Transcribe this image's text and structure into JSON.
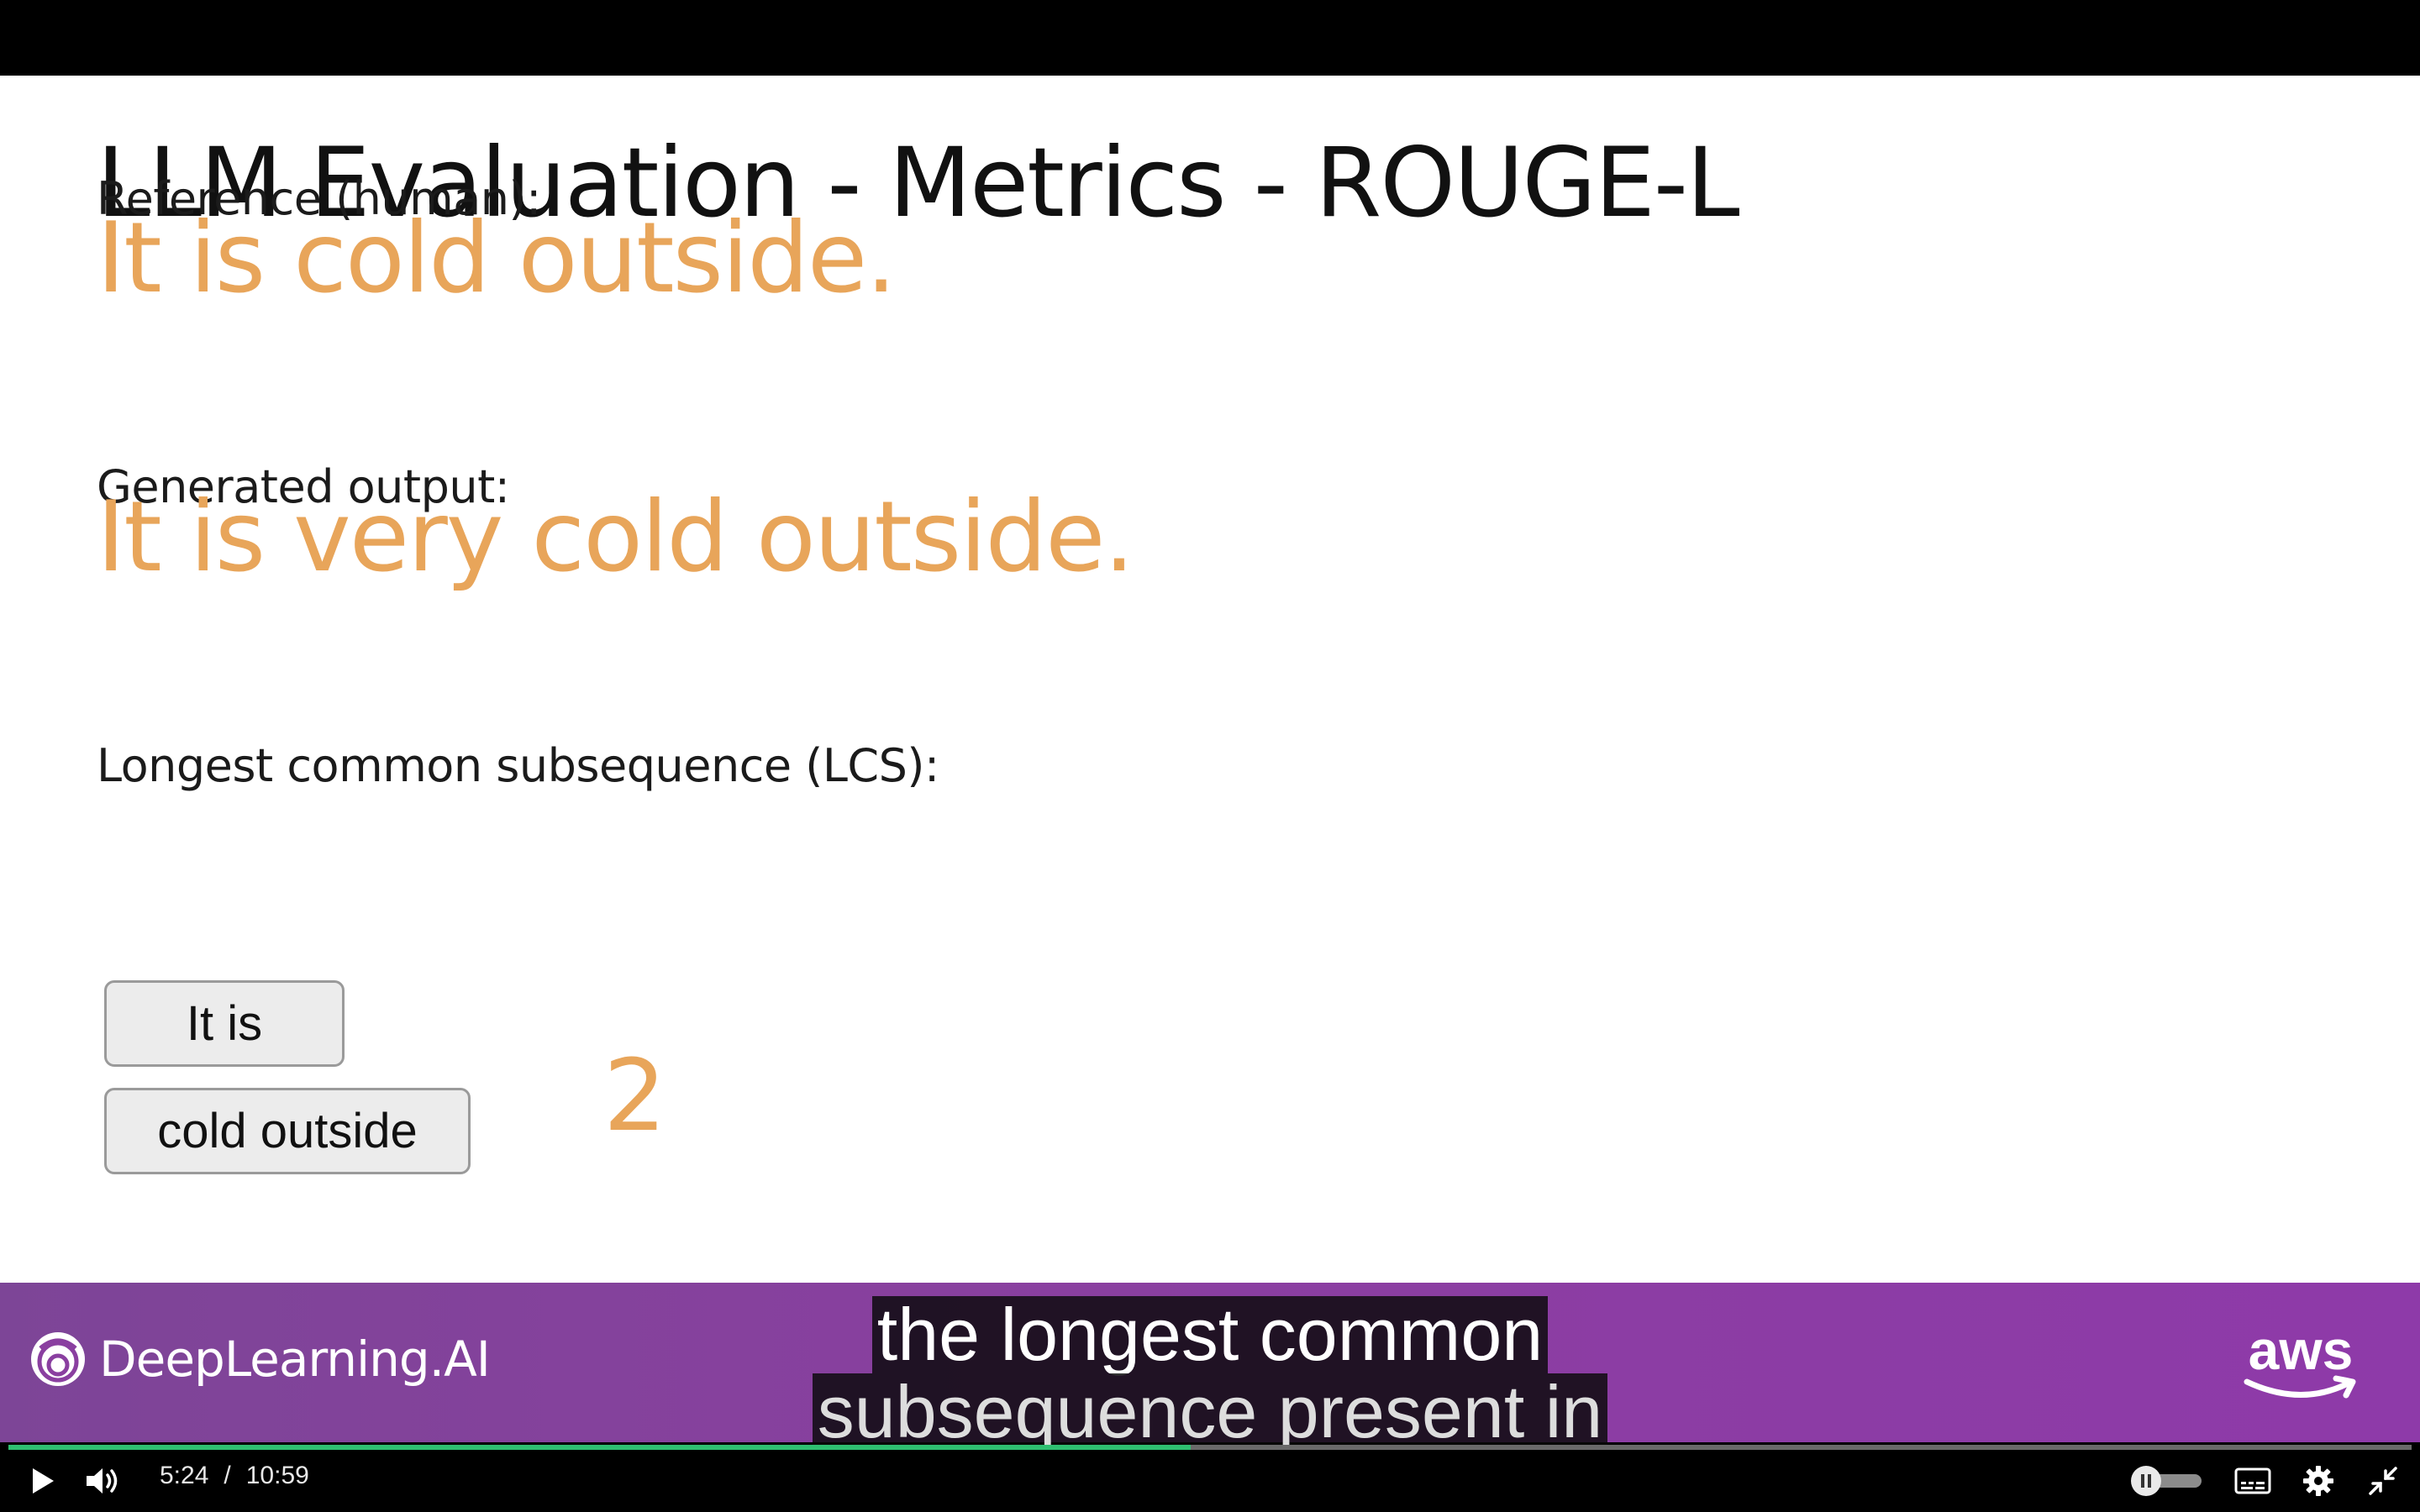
{
  "slide": {
    "title": "LLM Evaluation - Metrics - ROUGE-L",
    "reference_label": "Reference (human):",
    "reference_text": "It is cold outside.",
    "generated_label": "Generated output:",
    "generated_text": "It is very cold outside.",
    "lcs_label": "Longest common subsequence (LCS):",
    "lcs_segments": [
      "It is",
      "cold outside"
    ],
    "lcs_count": "2"
  },
  "branding": {
    "left_logo": "DeepLearning.AI",
    "right_logo": "aws"
  },
  "captions": {
    "line1": "the longest common",
    "line2": "subsequence present in"
  },
  "player": {
    "current_time": "5:24",
    "separator": "/",
    "duration": "10:59",
    "progress_fraction": 0.492,
    "accent_color": "#2fbf71"
  },
  "icons": {
    "play": "play-icon",
    "volume": "volume-icon",
    "autoplay_toggle": "toggle-icon",
    "captions": "captions-icon",
    "settings": "gear-icon",
    "exit_fullscreen": "exit-fullscreen-icon"
  }
}
